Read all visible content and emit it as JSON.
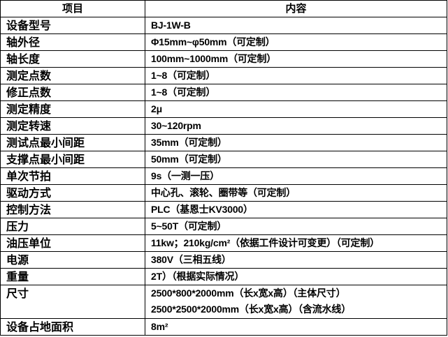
{
  "header": {
    "item": "项目",
    "content": "内容"
  },
  "rows": [
    {
      "label": "设备型号",
      "value": "BJ-1W-B"
    },
    {
      "label": "轴外径",
      "value": "Φ15mm~φ50mm（可定制）"
    },
    {
      "label": "轴长度",
      "value": "100mm~1000mm（可定制）"
    },
    {
      "label": "测定点数",
      "value": "1~8（可定制）"
    },
    {
      "label": "修正点数",
      "value": "1~8（可定制）"
    },
    {
      "label": "测定精度",
      "value": "2μ"
    },
    {
      "label": "测定转速",
      "value": "30~120rpm"
    },
    {
      "label": "测试点最小间距",
      "value": "35mm（可定制）"
    },
    {
      "label": "支撑点最小间距",
      "value": "50mm（可定制）"
    },
    {
      "label": "单次节拍",
      "value": "9s（一测一压）"
    },
    {
      "label": "驱动方式",
      "value": "中心孔、滚轮、圈带等（可定制）"
    },
    {
      "label": "控制方法",
      "value": "PLC（基恩士KV3000）"
    },
    {
      "label": "压力",
      "value": "5~50T（可定制）"
    },
    {
      "label": "油压单位",
      "value": "11kw；210kg/cm²（依据工件设计可变更）（可定制）"
    },
    {
      "label": "电源",
      "value": "380V（三相五线）"
    },
    {
      "label": "重量",
      "value": "2T）（根据实际情况）"
    }
  ],
  "size_row": {
    "label": "尺寸",
    "line1": "2500*800*2000mm（长x宽x高）（主体尺寸）",
    "line2": "2500*2500*2000mm（长x宽x高）（含流水线）"
  },
  "last_row": {
    "label": "设备占地面积",
    "value": "8m²"
  }
}
